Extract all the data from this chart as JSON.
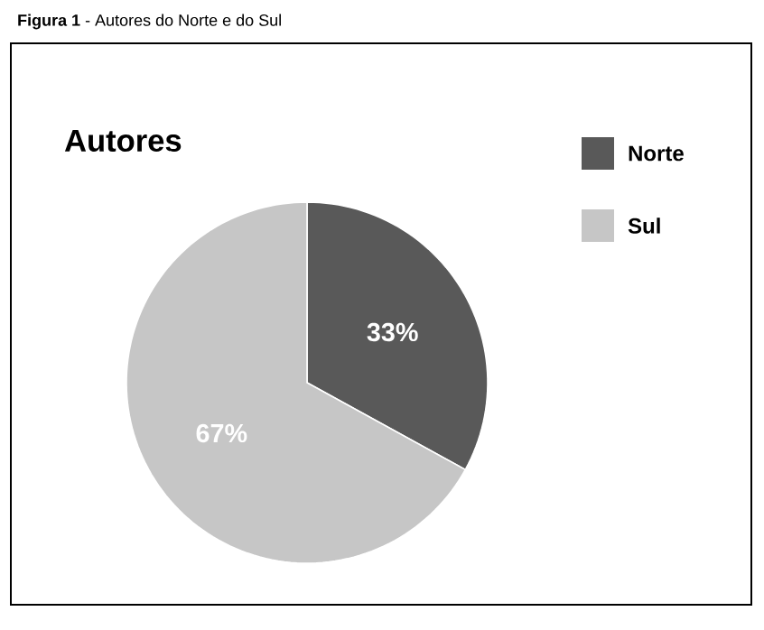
{
  "chart_data": {
    "type": "pie",
    "title": "Autores",
    "annotations": [
      "**Figura 1** - Autores do Norte e do Sul"
    ],
    "categories": [
      "Norte",
      "Sul"
    ],
    "values": [
      33,
      67
    ],
    "colors": [
      "#595959",
      "#c6c6c6"
    ],
    "value_labels": [
      "33%",
      "67%"
    ],
    "legend": "top right"
  }
}
